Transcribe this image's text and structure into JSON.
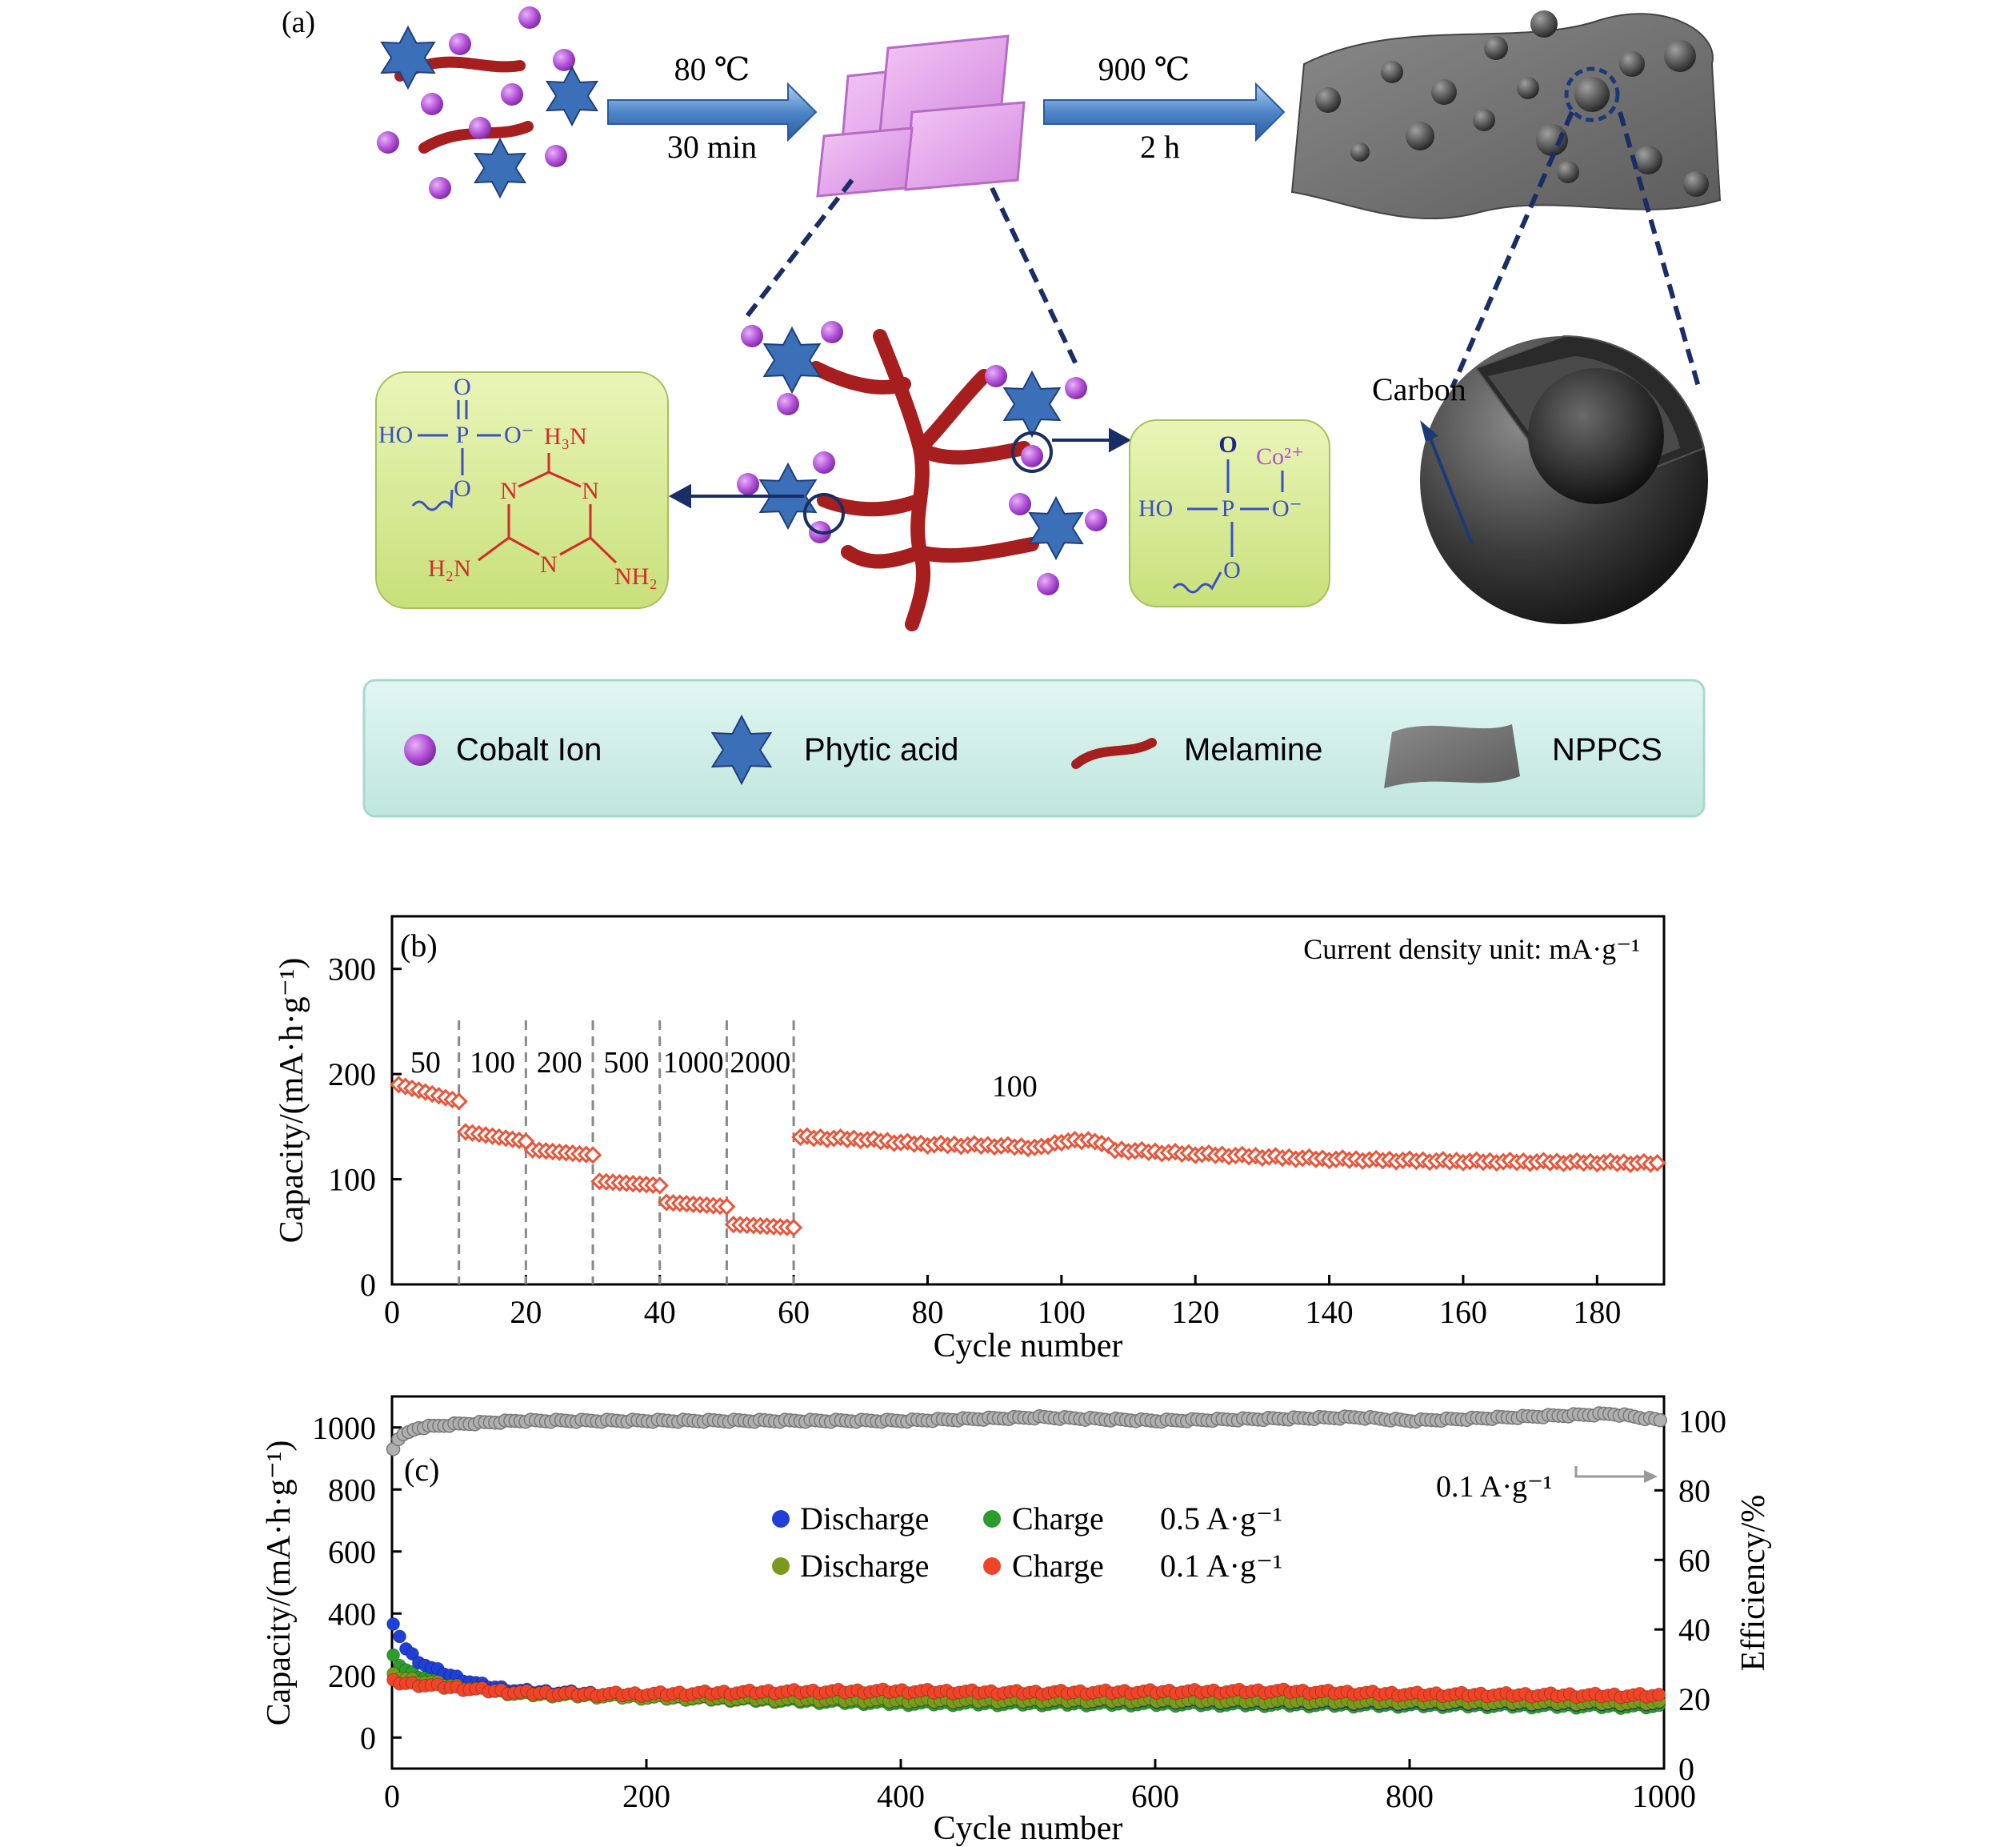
{
  "panel_a": {
    "label": "(a)",
    "step1": {
      "top": "80 ℃",
      "bottom": "30 min"
    },
    "step2": {
      "top": "900 ℃",
      "bottom": "2 h"
    },
    "carbon_label": "Carbon",
    "left_box": {
      "o": "O",
      "ho": "HO",
      "p": "P",
      "ominus": "O⁻",
      "o2": "O",
      "h3n": "H₃N",
      "n1": "N",
      "n2": "N",
      "n3": "N",
      "h2n": "H₂N",
      "nh2": "NH₂"
    },
    "right_box": {
      "o": "O",
      "co": "Co²⁺",
      "ho": "HO",
      "p": "P",
      "ominus": "O⁻",
      "o2": "O"
    },
    "legend": [
      {
        "label": "Cobalt Ion",
        "icon": "cobalt-ion"
      },
      {
        "label": "Phytic acid",
        "icon": "phytic-acid-star"
      },
      {
        "label": "Melamine",
        "icon": "melamine-strand"
      },
      {
        "label": "NPPCS",
        "icon": "nppcs-sheet"
      }
    ],
    "colors": {
      "cobalt": "#b24fd8",
      "star": "#3b6fb8",
      "melamine": "#a61e1e",
      "box": "#d6ea8a",
      "legend_box": "#d8f2ee"
    }
  },
  "chart_data": [
    {
      "type": "scatter",
      "panel_label": "(b)",
      "annotation": "Current density unit: mA·g⁻¹",
      "xlabel": "Cycle number",
      "ylabel": "Capacity/(mA·h·g⁻¹)",
      "xlim": [
        0,
        190
      ],
      "ylim": [
        0,
        350
      ],
      "xticks": [
        0,
        20,
        40,
        60,
        80,
        100,
        120,
        140,
        160,
        180
      ],
      "yticks": [
        0,
        100,
        200,
        300
      ],
      "rate_segments": [
        {
          "label": "50",
          "x": [
            0,
            10
          ],
          "start": 190,
          "end": 174
        },
        {
          "label": "100",
          "x": [
            10,
            20
          ],
          "start": 145,
          "end": 136
        },
        {
          "label": "200",
          "x": [
            20,
            30
          ],
          "start": 128,
          "end": 123
        },
        {
          "label": "500",
          "x": [
            30,
            40
          ],
          "start": 98,
          "end": 94
        },
        {
          "label": "1000",
          "x": [
            40,
            50
          ],
          "start": 78,
          "end": 74
        },
        {
          "label": "2000",
          "x": [
            50,
            60
          ],
          "start": 57,
          "end": 54
        },
        {
          "label": "100",
          "x": [
            60,
            190
          ],
          "points": [
            [
              61,
              140
            ],
            [
              70,
              138
            ],
            [
              80,
              133
            ],
            [
              90,
              132
            ],
            [
              97,
              130
            ],
            [
              100,
              136
            ],
            [
              105,
              137
            ],
            [
              108,
              128
            ],
            [
              120,
              124
            ],
            [
              140,
              119
            ],
            [
              160,
              117
            ],
            [
              180,
              116
            ],
            [
              189,
              115
            ]
          ]
        }
      ],
      "dividers": [
        10,
        20,
        30,
        40,
        50,
        60
      ],
      "marker_color": "#e8553a"
    },
    {
      "type": "scatter",
      "panel_label": "(c)",
      "xlabel": "Cycle number",
      "ylabel": "Capacity/(mA·h·g⁻¹)",
      "y2label": "Efficiency/%",
      "xlim": [
        0,
        1000
      ],
      "ylim": [
        -100,
        1100
      ],
      "y2lim": [
        0,
        107
      ],
      "xticks": [
        0,
        200,
        400,
        600,
        800,
        1000
      ],
      "yticks": [
        0,
        200,
        400,
        600,
        800,
        1000
      ],
      "y2ticks": [
        0,
        20,
        40,
        60,
        80,
        100
      ],
      "annotation": "0.1 A·g⁻¹",
      "legend": [
        {
          "label": "Discharge",
          "color": "#1f3fd6"
        },
        {
          "label": "Charge",
          "color": "#2c9c2c"
        },
        {
          "label": "0.5 A·g⁻¹"
        },
        {
          "label": "Discharge",
          "color": "#7a9a1e"
        },
        {
          "label": "Charge",
          "color": "#f04428"
        },
        {
          "label": "0.1 A·g⁻¹"
        }
      ],
      "series": [
        {
          "name": "Discharge 0.5 A·g⁻¹",
          "color": "#1f3fd6",
          "points": [
            [
              1,
              360
            ],
            [
              5,
              340
            ],
            [
              10,
              290
            ],
            [
              20,
              250
            ],
            [
              30,
              225
            ],
            [
              50,
              195
            ],
            [
              70,
              170
            ],
            [
              100,
              150
            ],
            [
              200,
              135
            ],
            [
              400,
              120
            ],
            [
              600,
              118
            ],
            [
              800,
              112
            ],
            [
              1000,
              110
            ]
          ]
        },
        {
          "name": "Charge 0.5 A·g⁻¹",
          "color": "#2c9c2c",
          "points": [
            [
              1,
              260
            ],
            [
              5,
              240
            ],
            [
              10,
              220
            ],
            [
              20,
              200
            ],
            [
              50,
              180
            ],
            [
              100,
              145
            ],
            [
              200,
              130
            ],
            [
              400,
              110
            ],
            [
              600,
              108
            ],
            [
              800,
              104
            ],
            [
              1000,
              100
            ]
          ]
        },
        {
          "name": "Discharge 0.1 A·g⁻¹",
          "color": "#7a9a1e",
          "points": [
            [
              1,
              200
            ],
            [
              10,
              190
            ],
            [
              50,
              165
            ],
            [
              100,
              140
            ],
            [
              200,
              130
            ],
            [
              400,
              120
            ],
            [
              600,
              120
            ],
            [
              800,
              115
            ],
            [
              1000,
              112
            ]
          ]
        },
        {
          "name": "Charge 0.1 A·g⁻¹",
          "color": "#f04428",
          "points": [
            [
              1,
              180
            ],
            [
              10,
              175
            ],
            [
              50,
              160
            ],
            [
              100,
              145
            ],
            [
              150,
              140
            ],
            [
              200,
              140
            ],
            [
              300,
              148
            ],
            [
              400,
              150
            ],
            [
              500,
              145
            ],
            [
              600,
              148
            ],
            [
              700,
              150
            ],
            [
              800,
              140
            ],
            [
              1000,
              135
            ]
          ]
        },
        {
          "name": "Efficiency",
          "color": "#9a9a9a",
          "axis": "right",
          "points": [
            [
              1,
              92
            ],
            [
              5,
              95
            ],
            [
              20,
              98
            ],
            [
              50,
              99
            ],
            [
              100,
              100
            ],
            [
              200,
              100
            ],
            [
              400,
              100
            ],
            [
              510,
              101
            ],
            [
              600,
              100
            ],
            [
              760,
              101
            ],
            [
              800,
              100
            ],
            [
              960,
              102
            ],
            [
              1000,
              100
            ]
          ]
        }
      ]
    }
  ]
}
